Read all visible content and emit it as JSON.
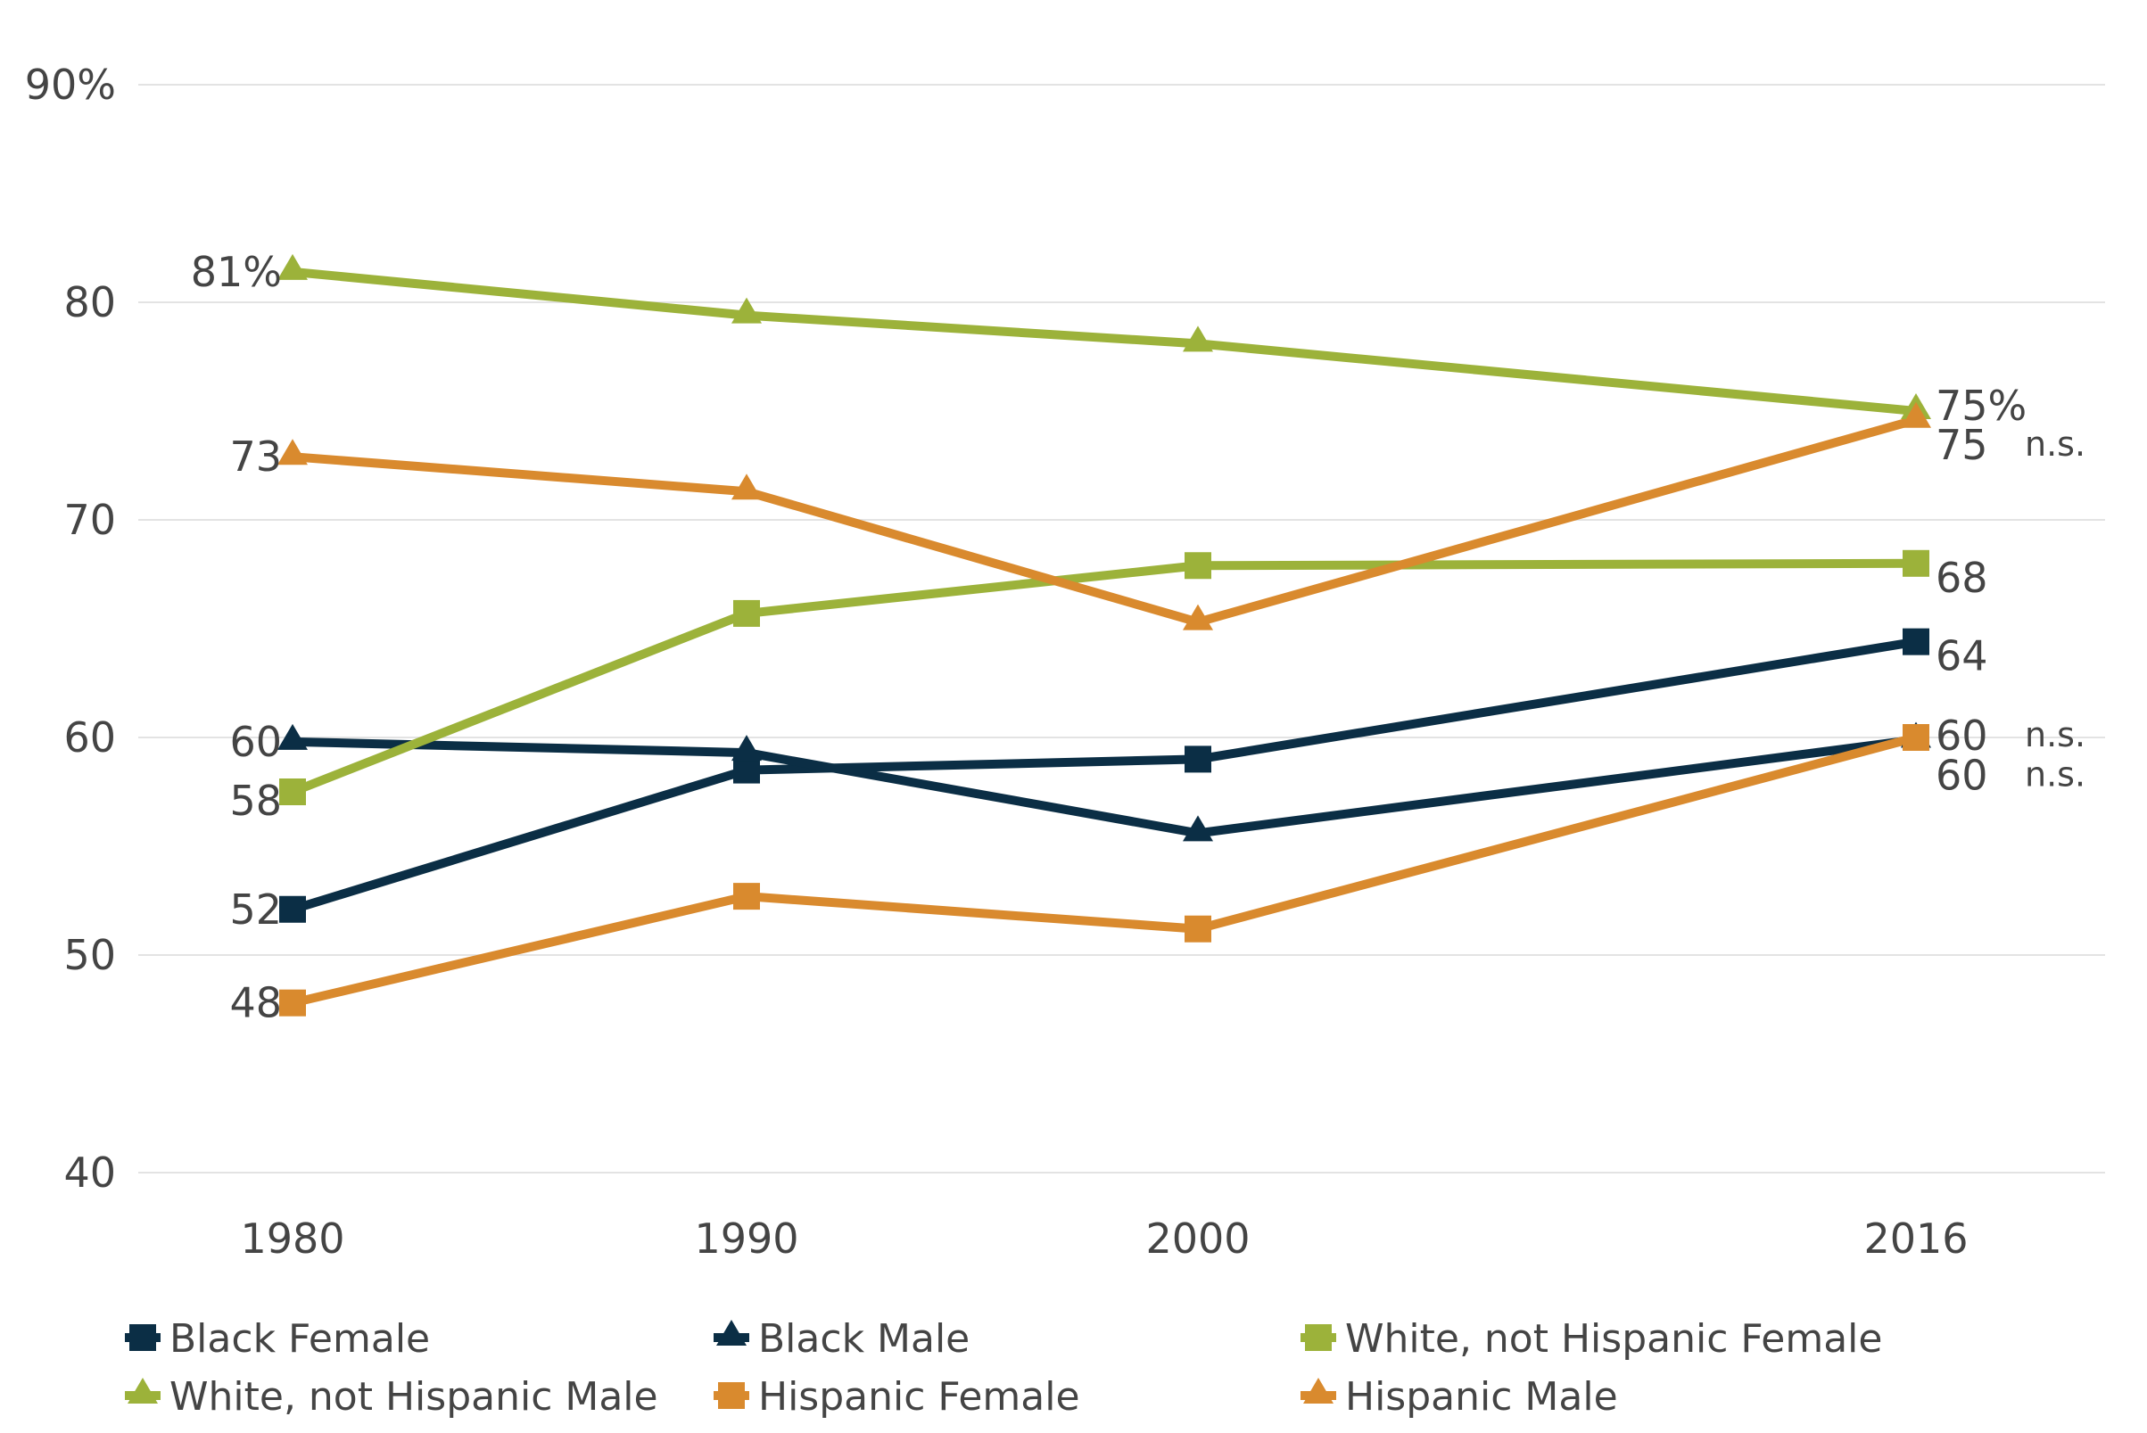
{
  "chart_data": {
    "type": "line",
    "title": "",
    "xlabel": "",
    "ylabel": "",
    "x": [
      "1980",
      "1990",
      "2000",
      "2016"
    ],
    "ylim": [
      40,
      90
    ],
    "yticks": [
      40,
      50,
      60,
      70,
      80,
      90
    ],
    "ytick_labels": [
      "40",
      "50",
      "60",
      "70",
      "80",
      "90%"
    ],
    "grid": true,
    "legend_position": "bottom",
    "series": [
      {
        "name": "Black Female",
        "color": "#0b2e45",
        "marker": "square",
        "values": [
          52.1,
          58.5,
          59.0,
          64.4
        ],
        "labels": {
          "0": "52",
          "3": "64"
        }
      },
      {
        "name": "Black Male",
        "color": "#0b2e45",
        "marker": "triangle",
        "values": [
          59.8,
          59.3,
          55.6,
          59.9
        ],
        "labels": {
          "0": "60",
          "3": "60"
        },
        "end_annotation": "n.s."
      },
      {
        "name": "White, not Hispanic Female",
        "color": "#9cb23a",
        "marker": "square",
        "values": [
          57.5,
          65.7,
          67.9,
          68.0
        ],
        "labels": {
          "0": "58",
          "3": "68"
        }
      },
      {
        "name": "White, not Hispanic Male",
        "color": "#9cb23a",
        "marker": "triangle",
        "values": [
          81.4,
          79.4,
          78.1,
          75.0
        ],
        "labels": {
          "0": "81%",
          "3": "75%"
        }
      },
      {
        "name": "Hispanic Female",
        "color": "#d98a2e",
        "marker": "square",
        "values": [
          47.8,
          52.7,
          51.2,
          60.0
        ],
        "labels": {
          "0": "48",
          "3": "60"
        },
        "end_annotation": "n.s."
      },
      {
        "name": "Hispanic Male",
        "color": "#d98a2e",
        "marker": "triangle",
        "values": [
          72.9,
          71.3,
          65.3,
          74.6
        ],
        "labels": {
          "0": "73",
          "3": "75"
        },
        "end_annotation": "n.s."
      }
    ],
    "annotations": [
      "n.s.",
      "n.s.",
      "n.s."
    ]
  }
}
